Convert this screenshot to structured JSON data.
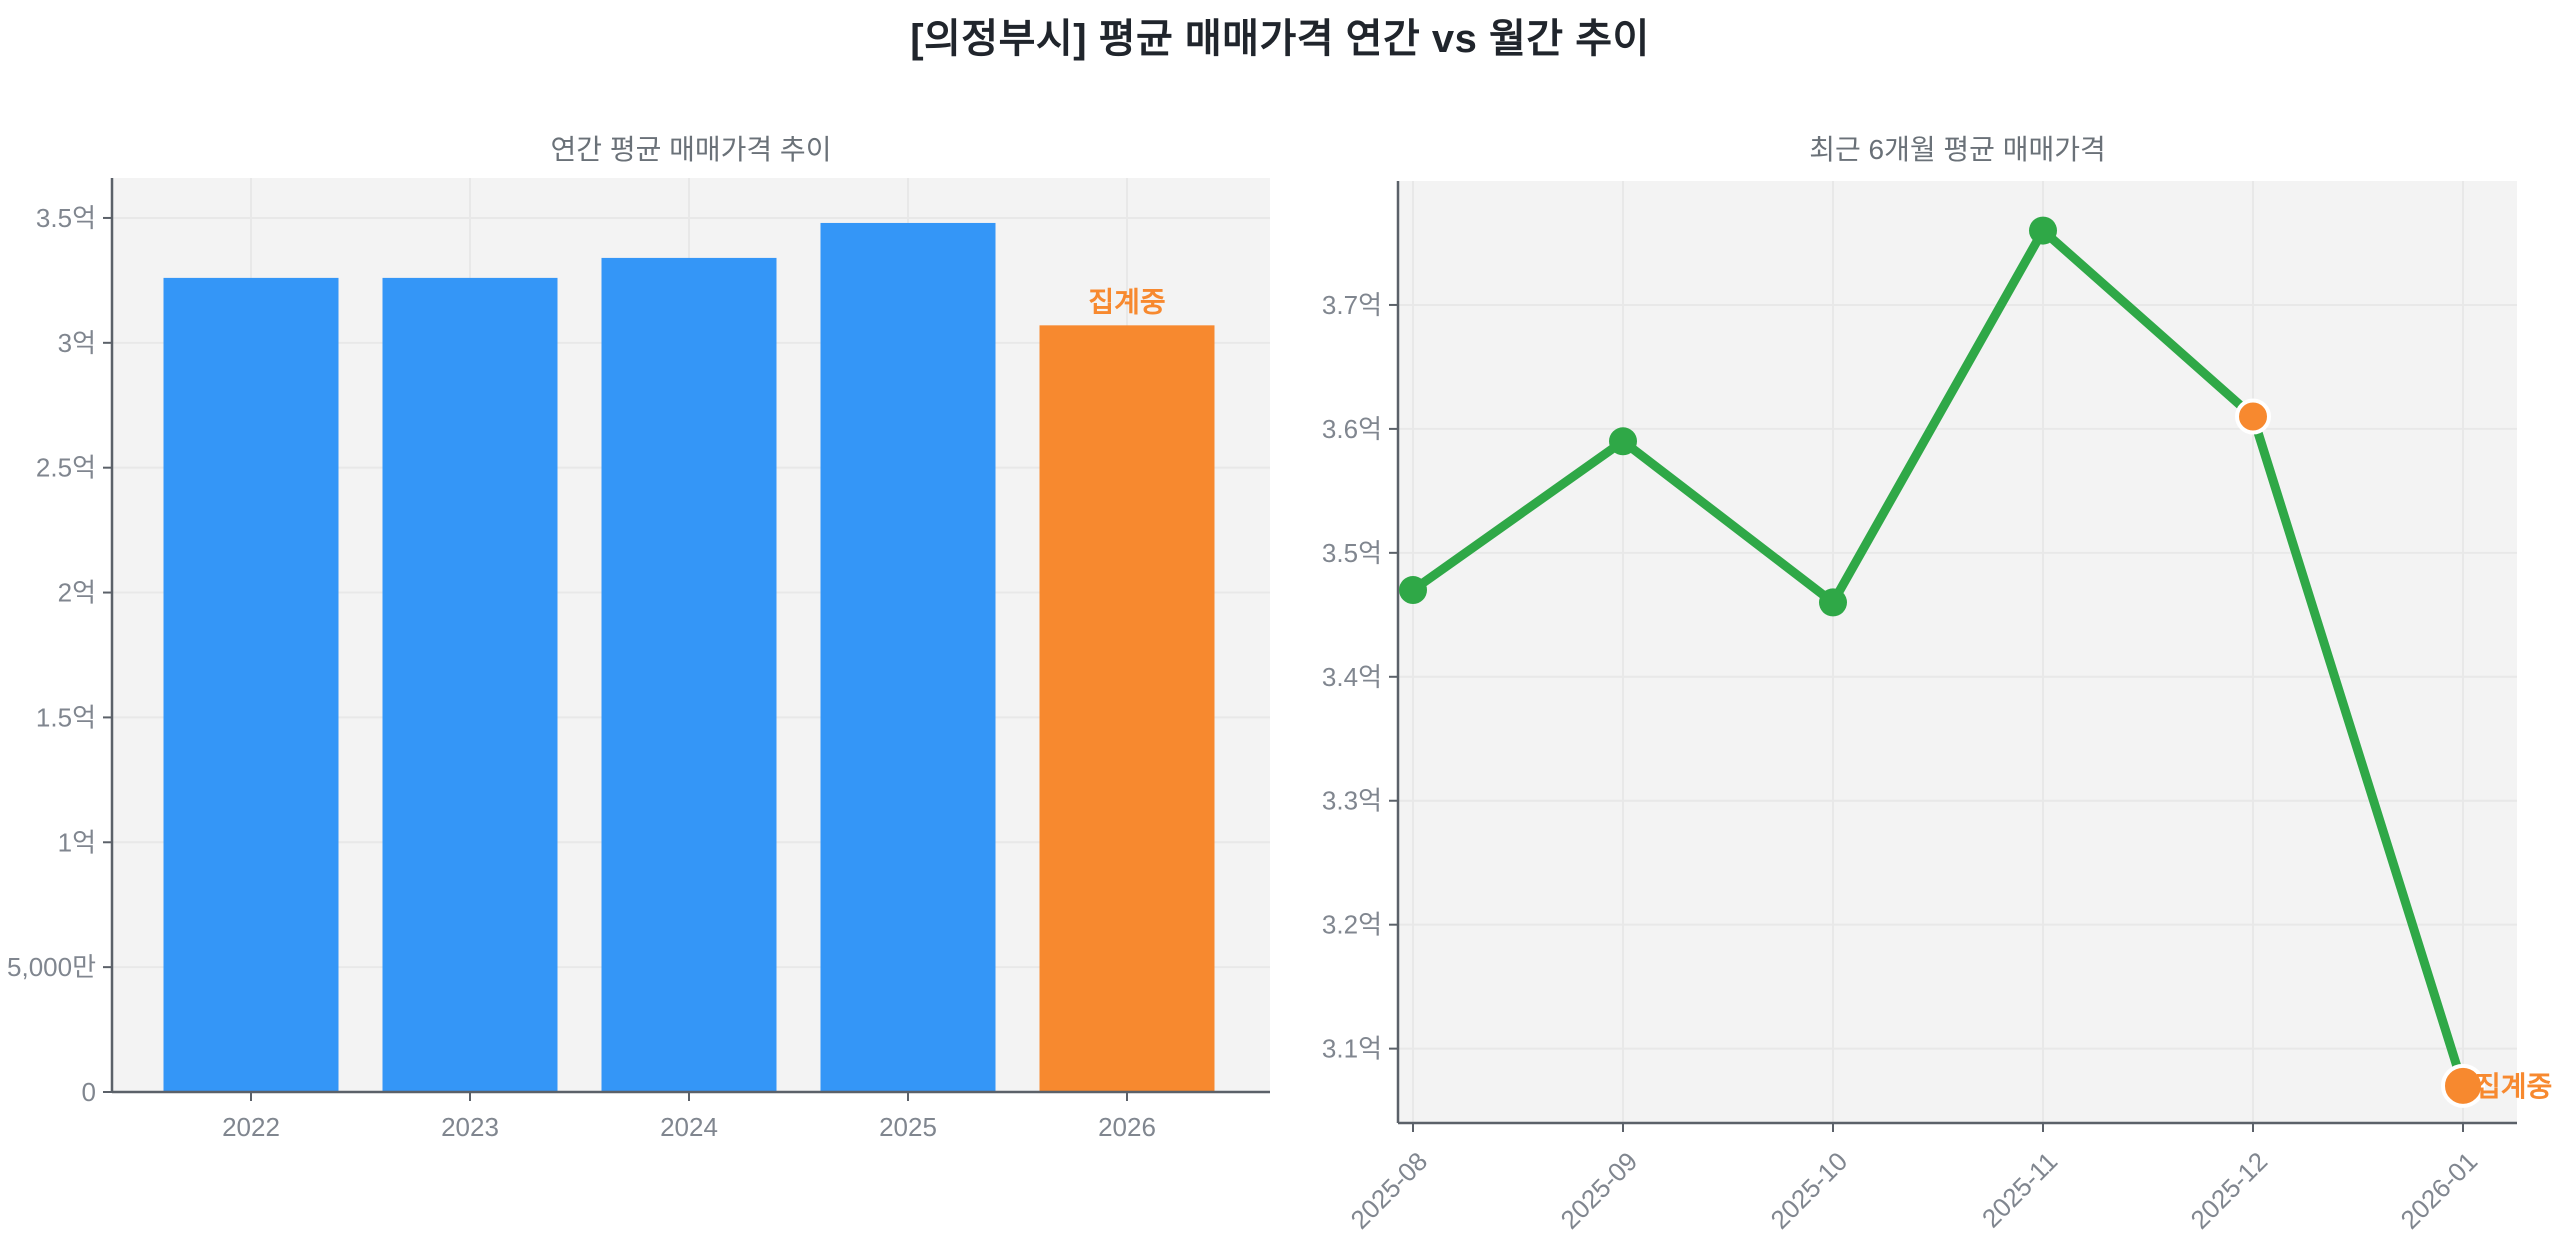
{
  "page": {
    "main_title": "[의정부시] 평균 매매가격 연간 vs 월간 추이"
  },
  "colors": {
    "accent_blue": "#3496F7",
    "accent_orange": "#F7892F",
    "accent_green": "#2FA847",
    "plot_bg": "#F3F3F3",
    "grid": "#E8E8E8",
    "axis": "#5B6169",
    "tick_text": "#80868F",
    "subtitle_text": "#6A7178",
    "title_text": "#20252C",
    "marker_ring": "#FFFFFF"
  },
  "chart_data": [
    {
      "type": "bar",
      "title": "연간 평균 매매가격 추이",
      "categories": [
        "2022",
        "2023",
        "2024",
        "2025",
        "2026"
      ],
      "values": [
        3.26,
        3.26,
        3.34,
        3.48,
        3.07
      ],
      "unit": "억",
      "bar_colors": [
        "#3496F7",
        "#3496F7",
        "#3496F7",
        "#3496F7",
        "#F7892F"
      ],
      "annotations": [
        {
          "category": "2026",
          "text": "집계중",
          "color": "#F7892F"
        }
      ],
      "ylim": [
        0,
        3.66
      ],
      "yticks": {
        "values": [
          0,
          0.5,
          1,
          1.5,
          2,
          2.5,
          3,
          3.5
        ],
        "labels": [
          "0",
          "5,000만",
          "1억",
          "1.5억",
          "2억",
          "2.5억",
          "3억",
          "3.5억"
        ]
      },
      "grid": true,
      "legend": "none"
    },
    {
      "type": "line",
      "title": "최근 6개월 평균 매매가격",
      "x": [
        "2025-08",
        "2025-09",
        "2025-10",
        "2025-11",
        "2025-12",
        "2026-01"
      ],
      "values": [
        3.47,
        3.59,
        3.46,
        3.76,
        3.61,
        3.07
      ],
      "unit": "억",
      "line_color": "#2FA847",
      "marker_colors": [
        "#2FA847",
        "#2FA847",
        "#2FA847",
        "#2FA847",
        "#F7892F",
        "#F7892F"
      ],
      "annotations": [
        {
          "x": "2026-01",
          "text": "집계중",
          "color": "#F7892F"
        }
      ],
      "ylim": [
        3.04,
        3.8
      ],
      "yticks": {
        "values": [
          3.1,
          3.2,
          3.3,
          3.4,
          3.5,
          3.6,
          3.7
        ],
        "labels": [
          "3.1억",
          "3.2억",
          "3.3억",
          "3.4억",
          "3.5억",
          "3.6억",
          "3.7억"
        ]
      },
      "grid": true,
      "legend": "none",
      "x_label_rotation_deg": 45
    }
  ]
}
